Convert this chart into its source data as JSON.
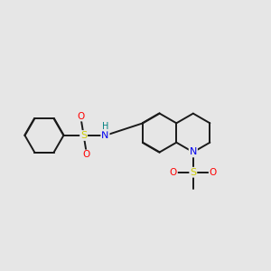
{
  "background_color": "#e6e6e6",
  "figsize": [
    3.0,
    3.0
  ],
  "dpi": 100,
  "bond_color": "#1a1a1a",
  "bond_lw": 1.4,
  "dbo": 0.018,
  "atom_colors": {
    "S": "#cccc00",
    "O": "#ff0000",
    "N_blue": "#0000ee",
    "H": "#008080"
  }
}
